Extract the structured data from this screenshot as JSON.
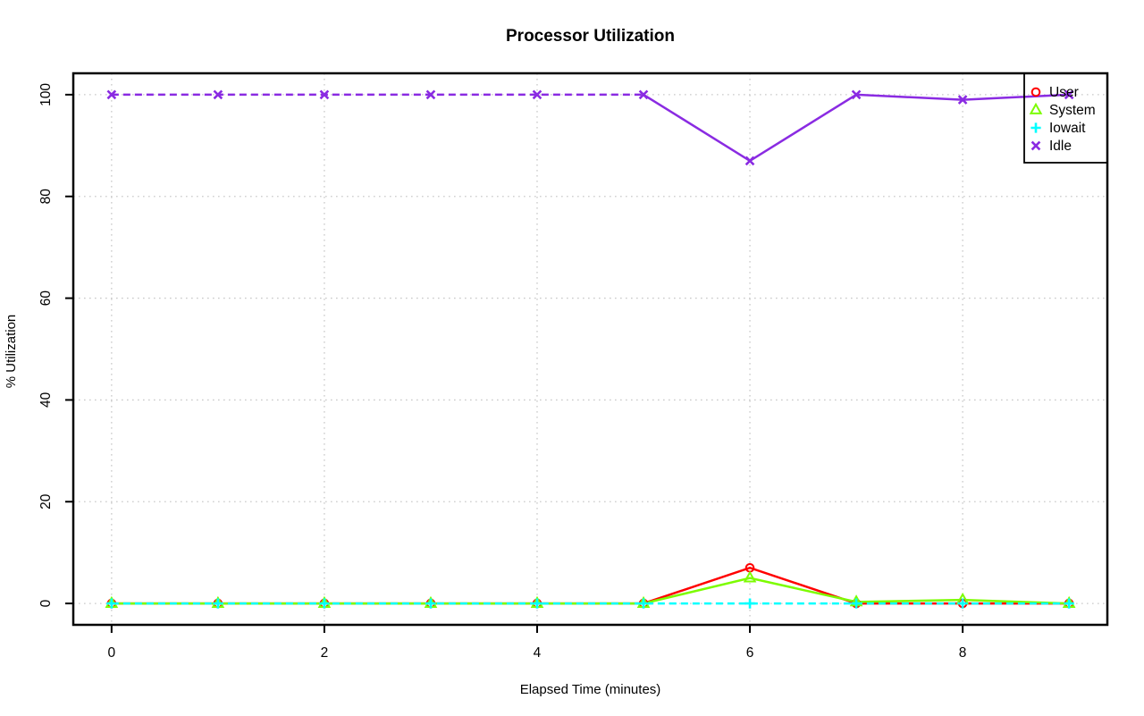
{
  "chart_data": {
    "type": "line",
    "title": "Processor Utilization",
    "xlabel": "Elapsed Time (minutes)",
    "ylabel": "% Utilization",
    "x": [
      0,
      1,
      2,
      3,
      4,
      5,
      6,
      7,
      8,
      9
    ],
    "xlim": [
      -0.36,
      9.36
    ],
    "ylim": [
      -4.2,
      104.2
    ],
    "xticks": [
      0,
      2,
      4,
      6,
      8
    ],
    "yticks": [
      0,
      20,
      40,
      60,
      80,
      100
    ],
    "grid": true,
    "grid_style": "dotted",
    "legend_position": "topright",
    "series": [
      {
        "name": "User",
        "color": "#ff0000",
        "marker": "circle",
        "line": "solid",
        "values": [
          0,
          0,
          0,
          0,
          0,
          0,
          7,
          0,
          0,
          0
        ]
      },
      {
        "name": "System",
        "color": "#7cfc00",
        "marker": "triangle",
        "line": "solid",
        "values": [
          0,
          0,
          0,
          0,
          0,
          0,
          5,
          0.3,
          0.7,
          0
        ]
      },
      {
        "name": "Iowait",
        "color": "#00ffff",
        "marker": "plus",
        "line": "dashed",
        "values": [
          0,
          0,
          0,
          0,
          0,
          0,
          0,
          0,
          0,
          0
        ]
      },
      {
        "name": "Idle",
        "color": "#8a2be2",
        "marker": "x",
        "line": "mixed",
        "segments": [
          {
            "from": 0,
            "to": 5,
            "dash": true
          },
          {
            "from": 5,
            "to": 9,
            "dash": false
          }
        ],
        "values": [
          100,
          100,
          100,
          100,
          100,
          100,
          87,
          100,
          99,
          100
        ]
      }
    ]
  },
  "colors": {
    "background": "#ffffff",
    "axis": "#000000",
    "grid": "#c9c9c9",
    "text": "#000000"
  }
}
